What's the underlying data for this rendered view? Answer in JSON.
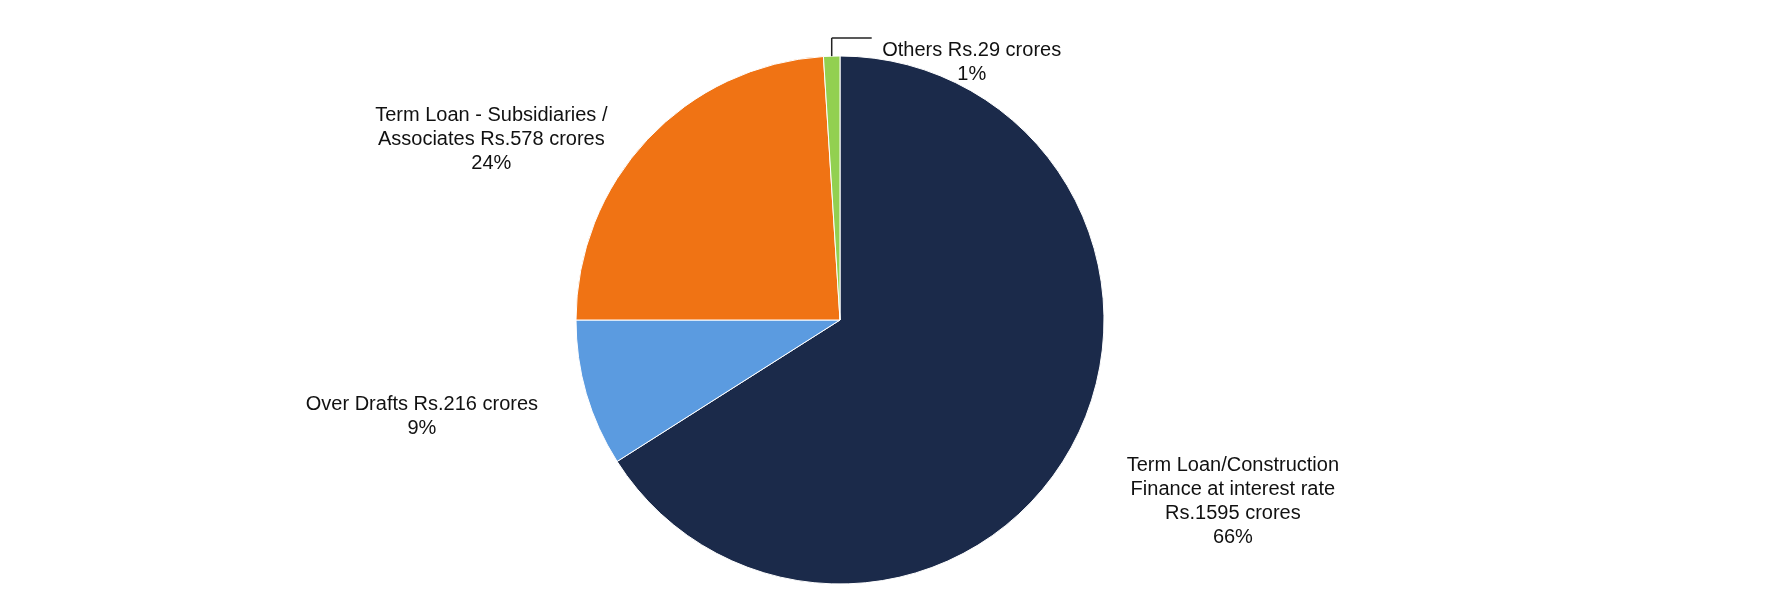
{
  "chart_data": {
    "type": "pie",
    "categories": [
      "Term Loan/Construction Finance at interest rate Rs.1595 crores",
      "Over Drafts Rs.216 crores",
      "Term Loan - Subsidiaries / Associates Rs.578 crores",
      "Others Rs.29 crores"
    ],
    "values": [
      66,
      9,
      24,
      1
    ],
    "value_labels": [
      "66%",
      "9%",
      "24%",
      "1%"
    ],
    "colors": [
      "#1b2a4a",
      "#5b9be0",
      "#f07314",
      "#92d050"
    ]
  }
}
